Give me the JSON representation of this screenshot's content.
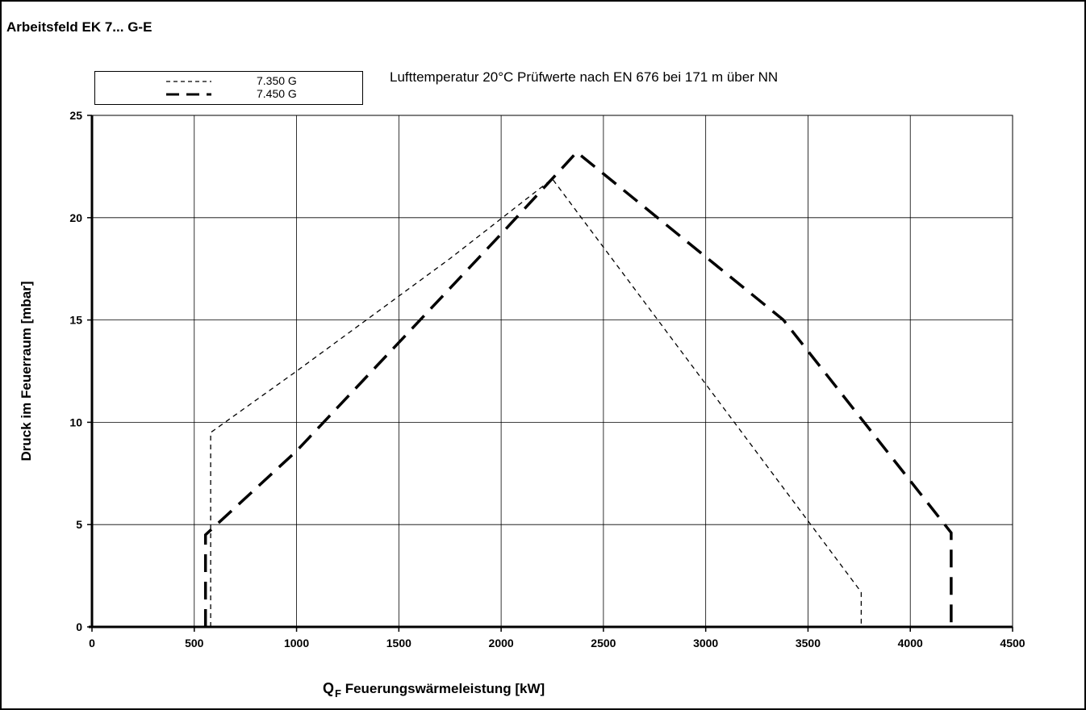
{
  "header": {
    "title": "Arbeitsfeld EK 7... G-E"
  },
  "subtitle": "Lufttemperatur 20°C Prüfwerte nach EN 676 bei 171 m über NN",
  "chart_data": {
    "type": "line",
    "title": "Arbeitsfeld EK 7... G-E",
    "subtitle": "Lufttemperatur 20°C Prüfwerte nach EN 676 bei 171 m über NN",
    "ylabel": "Druck im Feuerraum [mbar]",
    "xlabel": {
      "symbol": "Q",
      "subscript": "F",
      "text": "Feuerungswärmeleistung [kW]"
    },
    "xlim": [
      0,
      4500
    ],
    "ylim": [
      0,
      25
    ],
    "xticks": [
      0,
      500,
      1000,
      1500,
      2000,
      2500,
      3000,
      3500,
      4000,
      4500
    ],
    "yticks": [
      0,
      5,
      10,
      15,
      20,
      25
    ],
    "grid": true,
    "legend": "top-left",
    "series": [
      {
        "name": "7.350 G",
        "style": "short-dash",
        "color": "#000000",
        "x": [
          580,
          580,
          1000,
          1750,
          2250,
          3760,
          3760
        ],
        "y": [
          0,
          9.5,
          12.5,
          18,
          21.9,
          1.7,
          0
        ]
      },
      {
        "name": "7.450 G",
        "style": "long-dash-bold",
        "color": "#000000",
        "x": [
          555,
          555,
          1000,
          2000,
          2370,
          3380,
          4200,
          4200
        ],
        "y": [
          0,
          4.5,
          8.6,
          19.2,
          23.2,
          15,
          4.6,
          0
        ]
      }
    ]
  }
}
